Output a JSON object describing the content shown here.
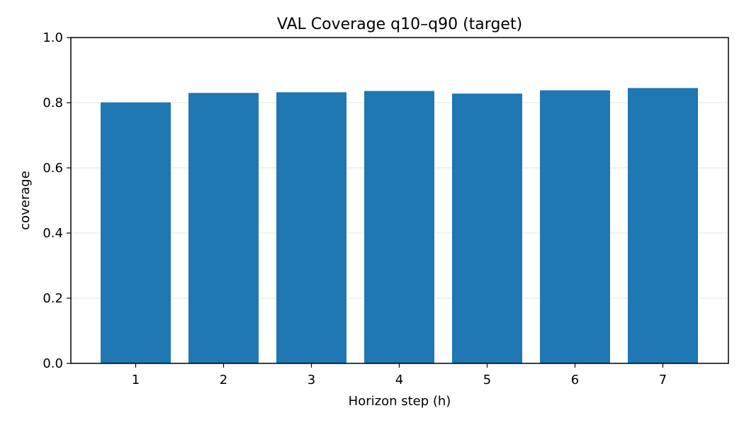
{
  "chart_data": {
    "type": "bar",
    "title": "VAL Coverage q10–q90 (target)",
    "xlabel": "Horizon step (h)",
    "ylabel": "coverage",
    "categories": [
      "1",
      "2",
      "3",
      "4",
      "5",
      "6",
      "7"
    ],
    "values": [
      0.801,
      0.83,
      0.832,
      0.836,
      0.828,
      0.838,
      0.845
    ],
    "ylim": [
      0,
      1.0
    ],
    "yticks": [
      "0.0",
      "0.2",
      "0.4",
      "0.6",
      "0.8",
      "1.0"
    ],
    "grid": "horizontal",
    "legend": "none",
    "colors": {
      "bar": "#1f77b4",
      "grid": "#e6e6e6",
      "axis": "#000000"
    }
  }
}
